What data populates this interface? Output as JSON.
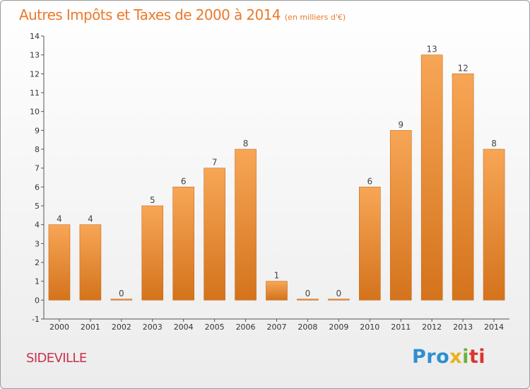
{
  "chart_data": {
    "type": "bar",
    "title": "Autres Impôts et Taxes de 2000 à 2014",
    "subtitle": "(en milliers d'€)",
    "categories": [
      "2000",
      "2001",
      "2002",
      "2003",
      "2004",
      "2005",
      "2006",
      "2007",
      "2008",
      "2009",
      "2010",
      "2011",
      "2012",
      "2013",
      "2014"
    ],
    "values": [
      4,
      4,
      0,
      5,
      6,
      7,
      8,
      1,
      0,
      0,
      6,
      9,
      13,
      12,
      8
    ],
    "ylim": [
      -1,
      14
    ],
    "yticks": [
      -1,
      0,
      1,
      2,
      3,
      4,
      5,
      6,
      7,
      8,
      9,
      10,
      11,
      12,
      13,
      14
    ],
    "grid": false,
    "colors": {
      "bar_top": "#f7a656",
      "bar_bottom": "#d4731c",
      "bar_edge": "#c96a1a",
      "axis": "#555555"
    }
  },
  "footer": {
    "town": "SIDEVILLE",
    "logo_parts": [
      "Pro",
      "x",
      "i",
      "ti"
    ]
  }
}
